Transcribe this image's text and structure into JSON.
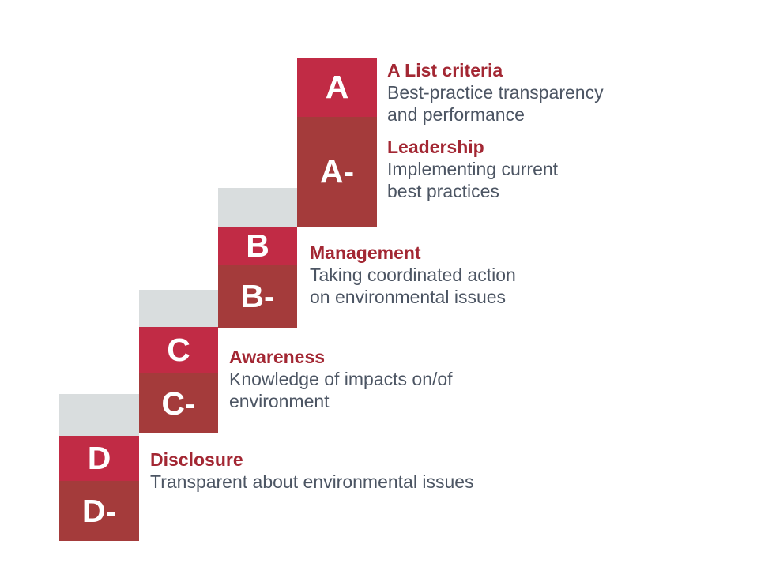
{
  "ladder": {
    "colors": {
      "grade_block": "#C12B45",
      "grade_minus_block": "#A43B3B",
      "riser_block": "#D9DDDE",
      "tier_heading": "#A32733",
      "tier_body": "#4C5563",
      "grade_text": "#FFFFFF",
      "background": "#FFFFFF"
    },
    "steps": [
      {
        "grade": "A",
        "grade_minus": "A-"
      },
      {
        "grade": "B",
        "grade_minus": "B-"
      },
      {
        "grade": "C",
        "grade_minus": "C-"
      },
      {
        "grade": "D",
        "grade_minus": "D-"
      }
    ],
    "labels": [
      {
        "title": "A List criteria",
        "lines": [
          "Best-practice transparency",
          "and performance"
        ]
      },
      {
        "title": "Leadership",
        "lines": [
          "Implementing current",
          "best practices"
        ]
      },
      {
        "title": "Management",
        "lines": [
          "Taking coordinated action",
          "on environmental issues"
        ]
      },
      {
        "title": "Awareness",
        "lines": [
          "Knowledge of impacts on/of",
          "environment"
        ]
      },
      {
        "title": "Disclosure",
        "lines": [
          "Transparent about environmental issues"
        ]
      }
    ]
  }
}
